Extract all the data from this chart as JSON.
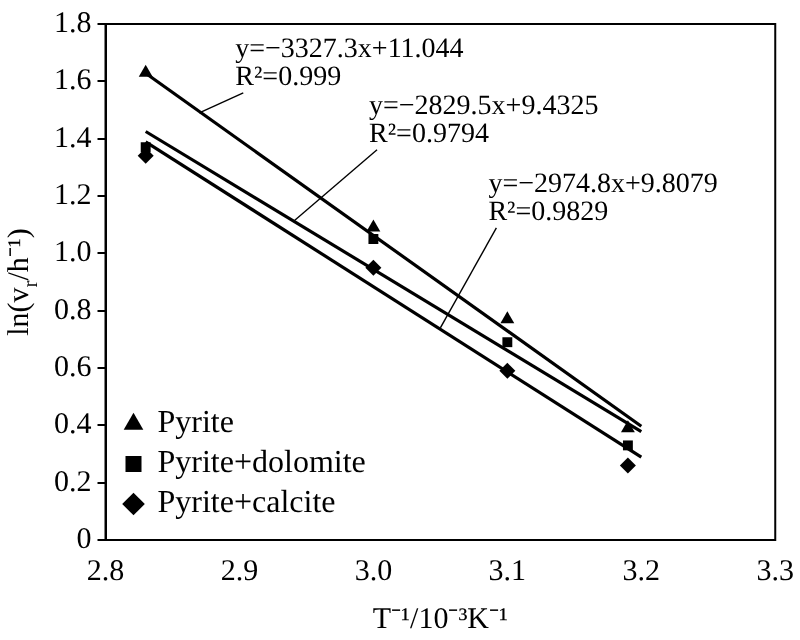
{
  "chart_data": {
    "type": "scatter",
    "xlabel": "T⁻¹/10⁻³K⁻¹",
    "ylabel": "ln(v$_{r}$/h⁻¹)",
    "xlim": [
      2.8,
      3.3
    ],
    "xticks": [
      2.8,
      2.9,
      {
        "value": 3,
        "label": "3.0"
      },
      3.1,
      3.2,
      3.3
    ],
    "ylim": [
      0,
      1.8
    ],
    "yticks": [
      0,
      0.2,
      0.4,
      0.6,
      0.8,
      {
        "value": 1,
        "label": "1.0"
      },
      1.2,
      1.4,
      1.6,
      1.8
    ],
    "grid": false,
    "legend": "bottom left",
    "series": [
      {
        "name": "Pyrite",
        "type": "scatter",
        "marker": "triangle",
        "color": "#000000",
        "x": [
          2.83,
          3.0,
          3.1,
          3.19
        ],
        "values": [
          1.63,
          1.09,
          0.77,
          0.39
        ]
      },
      {
        "name": "Pyrite+dolomite",
        "type": "scatter",
        "marker": "square",
        "color": "#000000",
        "x": [
          2.83,
          3.0,
          3.1,
          3.19
        ],
        "values": [
          1.37,
          1.05,
          0.69,
          0.33
        ]
      },
      {
        "name": "Pyrite+calcite",
        "type": "scatter",
        "marker": "diamond",
        "color": "#000000",
        "x": [
          2.83,
          3.0,
          3.1,
          3.19
        ],
        "values": [
          1.34,
          0.95,
          0.59,
          0.26
        ]
      },
      {
        "type": "line",
        "marker": "none",
        "color": "#000000",
        "x": [
          2.83,
          3.2
        ],
        "values": [
          1.628,
          0.397
        ]
      },
      {
        "type": "line",
        "marker": "none",
        "color": "#000000",
        "x": [
          2.83,
          3.2
        ],
        "values": [
          1.425,
          0.378
        ]
      },
      {
        "type": "line",
        "marker": "none",
        "color": "#000000",
        "x": [
          2.83,
          3.2
        ],
        "values": [
          1.389,
          0.289
        ]
      }
    ],
    "annotations": [
      {
        "text": "y=−3327.3x+11.044\nR²=0.999",
        "x": 2.87,
        "y": 1.49
      },
      {
        "text": "y=−2829.5x+9.4325\nR²=0.9794",
        "x": 2.94,
        "y": 1.11
      },
      {
        "text": "y=−2974.8x+9.8079\nR²=0.9829",
        "x": 3.05,
        "y": 0.74
      }
    ]
  }
}
